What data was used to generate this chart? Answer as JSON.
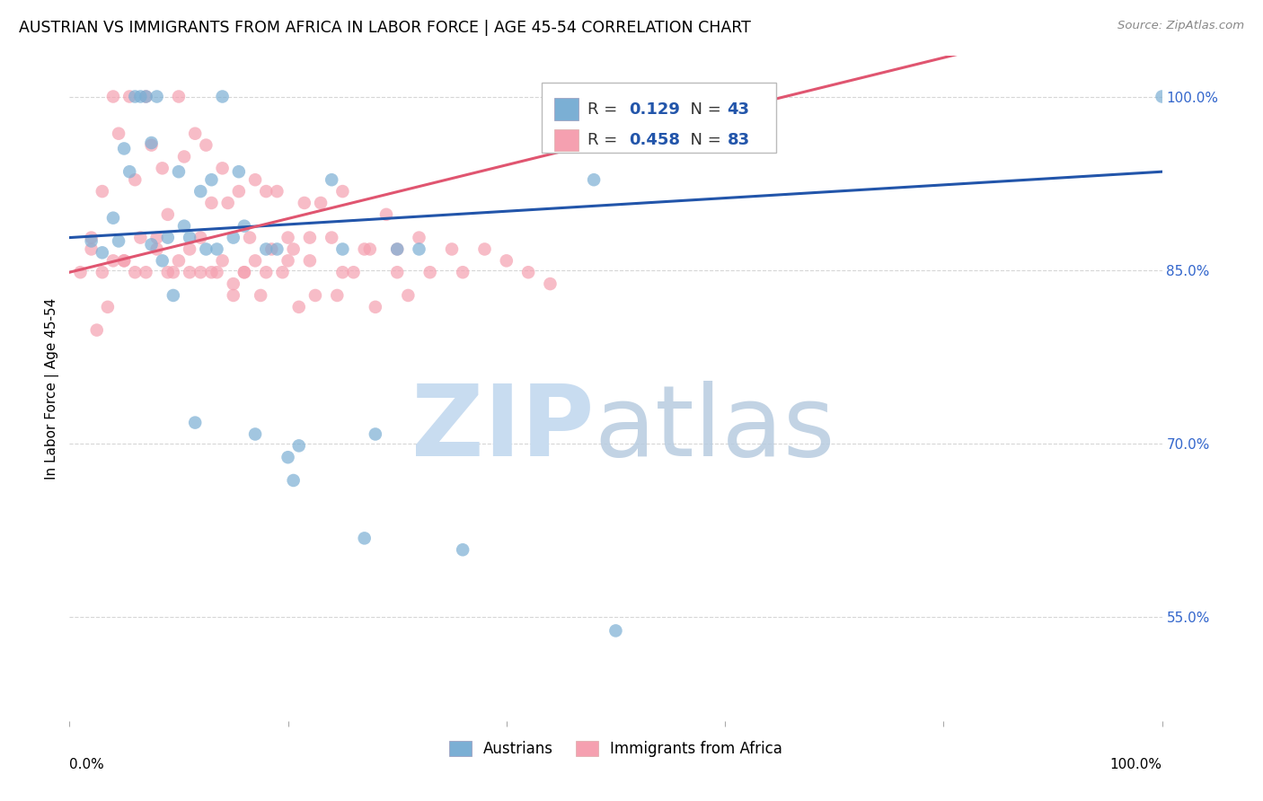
{
  "title": "AUSTRIAN VS IMMIGRANTS FROM AFRICA IN LABOR FORCE | AGE 45-54 CORRELATION CHART",
  "source": "Source: ZipAtlas.com",
  "ylabel": "In Labor Force | Age 45-54",
  "xlim": [
    0.0,
    1.0
  ],
  "ylim": [
    0.46,
    1.035
  ],
  "blue_R": 0.129,
  "blue_N": 43,
  "pink_R": 0.458,
  "pink_N": 83,
  "blue_color": "#7BAfd4",
  "pink_color": "#F5A0B0",
  "blue_line_color": "#2255AA",
  "pink_line_color": "#E05570",
  "blue_scatter_x": [
    0.02,
    0.03,
    0.04,
    0.045,
    0.05,
    0.055,
    0.06,
    0.065,
    0.07,
    0.075,
    0.075,
    0.08,
    0.085,
    0.09,
    0.095,
    0.1,
    0.105,
    0.11,
    0.115,
    0.12,
    0.125,
    0.13,
    0.135,
    0.14,
    0.15,
    0.155,
    0.16,
    0.17,
    0.18,
    0.19,
    0.2,
    0.205,
    0.21,
    0.24,
    0.25,
    0.27,
    0.28,
    0.3,
    0.32,
    0.36,
    0.48,
    0.5,
    1.0
  ],
  "blue_scatter_y": [
    0.875,
    0.865,
    0.895,
    0.875,
    0.955,
    0.935,
    1.0,
    1.0,
    1.0,
    0.96,
    0.872,
    1.0,
    0.858,
    0.878,
    0.828,
    0.935,
    0.888,
    0.878,
    0.718,
    0.918,
    0.868,
    0.928,
    0.868,
    1.0,
    0.878,
    0.935,
    0.888,
    0.708,
    0.868,
    0.868,
    0.688,
    0.668,
    0.698,
    0.928,
    0.868,
    0.618,
    0.708,
    0.868,
    0.868,
    0.608,
    0.928,
    0.538,
    1.0
  ],
  "pink_scatter_x": [
    0.01,
    0.02,
    0.025,
    0.03,
    0.035,
    0.04,
    0.045,
    0.05,
    0.055,
    0.06,
    0.065,
    0.07,
    0.075,
    0.08,
    0.085,
    0.09,
    0.095,
    0.1,
    0.105,
    0.11,
    0.115,
    0.12,
    0.125,
    0.13,
    0.135,
    0.14,
    0.145,
    0.15,
    0.155,
    0.16,
    0.165,
    0.17,
    0.175,
    0.18,
    0.185,
    0.19,
    0.195,
    0.2,
    0.205,
    0.21,
    0.215,
    0.22,
    0.225,
    0.23,
    0.24,
    0.245,
    0.25,
    0.26,
    0.27,
    0.275,
    0.28,
    0.29,
    0.3,
    0.31,
    0.32,
    0.33,
    0.35,
    0.36,
    0.38,
    0.4,
    0.42,
    0.44,
    0.3,
    0.22,
    0.25,
    0.2,
    0.18,
    0.17,
    0.16,
    0.15,
    0.14,
    0.13,
    0.12,
    0.11,
    0.1,
    0.09,
    0.08,
    0.07,
    0.06,
    0.05,
    0.04,
    0.03,
    0.02
  ],
  "pink_scatter_y": [
    0.848,
    0.868,
    0.798,
    0.918,
    0.818,
    1.0,
    0.968,
    0.858,
    1.0,
    0.928,
    0.878,
    1.0,
    0.958,
    0.878,
    0.938,
    0.898,
    0.848,
    1.0,
    0.948,
    0.868,
    0.968,
    0.878,
    0.958,
    0.908,
    0.848,
    0.938,
    0.908,
    0.828,
    0.918,
    0.848,
    0.878,
    0.928,
    0.828,
    0.918,
    0.868,
    0.918,
    0.848,
    0.878,
    0.868,
    0.818,
    0.908,
    0.878,
    0.828,
    0.908,
    0.878,
    0.828,
    0.918,
    0.848,
    0.868,
    0.868,
    0.818,
    0.898,
    0.848,
    0.828,
    0.878,
    0.848,
    0.868,
    0.848,
    0.868,
    0.858,
    0.848,
    0.838,
    0.868,
    0.858,
    0.848,
    0.858,
    0.848,
    0.858,
    0.848,
    0.838,
    0.858,
    0.848,
    0.848,
    0.848,
    0.858,
    0.848,
    0.868,
    0.848,
    0.848,
    0.858,
    0.858,
    0.848,
    0.878
  ],
  "background_color": "#FFFFFF",
  "grid_color": "#CCCCCC"
}
